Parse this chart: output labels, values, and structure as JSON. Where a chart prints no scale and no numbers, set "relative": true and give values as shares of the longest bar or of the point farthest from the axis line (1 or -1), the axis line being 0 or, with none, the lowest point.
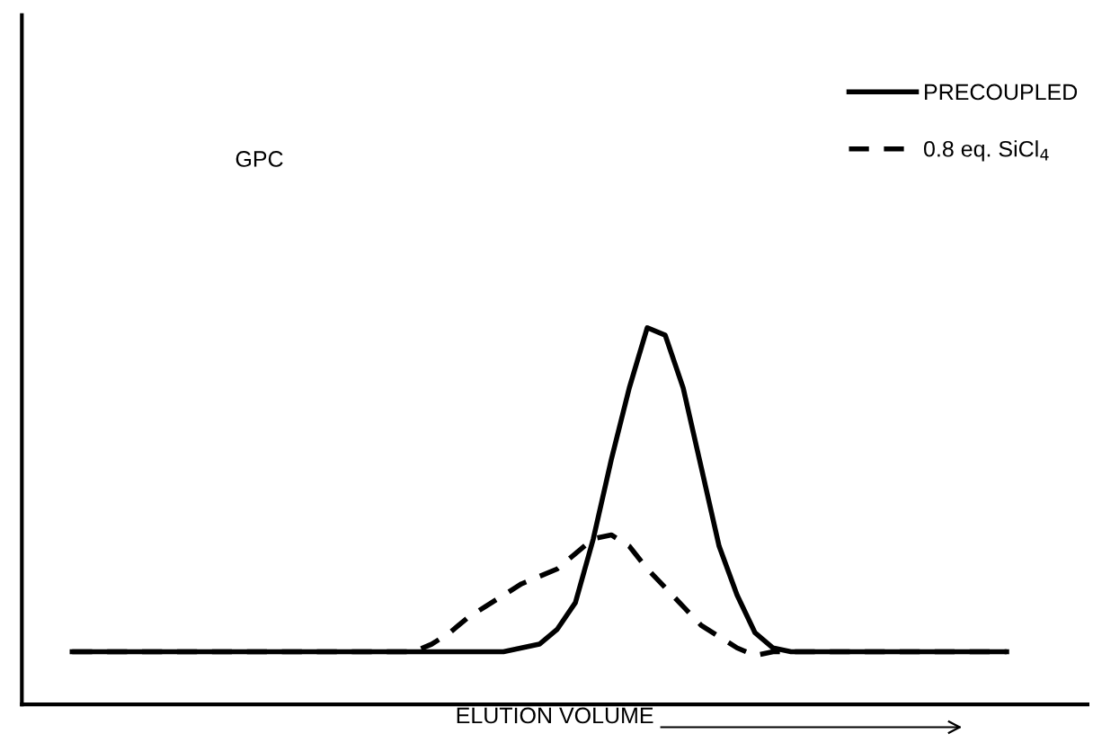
{
  "chart_data": {
    "type": "line",
    "relative": true,
    "xlabel": "ELUTION VOLUME",
    "annotations": [
      "GPC"
    ],
    "categories": [
      null,
      null,
      null,
      null,
      null,
      null,
      null,
      null,
      null,
      null,
      null,
      null,
      null,
      null,
      null,
      null,
      null,
      null,
      null,
      null,
      null,
      null,
      null,
      null,
      null,
      null,
      null,
      null,
      null,
      null,
      null,
      null,
      null,
      null,
      null,
      null,
      null,
      null,
      null,
      null,
      null,
      null,
      null,
      null,
      null,
      null,
      null,
      null,
      null,
      null,
      null,
      null,
      null
    ],
    "series": [
      {
        "name": "PRECOUPLED",
        "color": "#000000",
        "line_style": "solid",
        "values": [
          0.14,
          0.14,
          0.14,
          0.14,
          0.14,
          0.14,
          0.14,
          0.14,
          0.14,
          0.14,
          0.14,
          0.14,
          0.14,
          0.14,
          0.14,
          0.14,
          0.14,
          0.14,
          0.14,
          0.14,
          0.14,
          0.14,
          0.14,
          0.14,
          0.14,
          0.15,
          0.16,
          0.2,
          0.27,
          0.44,
          0.65,
          0.84,
          1,
          0.98,
          0.84,
          0.63,
          0.42,
          0.29,
          0.19,
          0.15,
          0.14,
          0.14,
          0.14,
          0.14,
          0.14,
          0.14,
          0.14,
          0.14,
          0.14,
          0.14,
          0.14,
          0.14,
          0.14
        ]
      },
      {
        "name": "0.8 eq. SiCl$_{4}$",
        "color": "#000000",
        "line_style": "dashed",
        "values": [
          0.14,
          0.14,
          0.14,
          0.14,
          0.14,
          0.14,
          0.14,
          0.14,
          0.14,
          0.14,
          0.14,
          0.14,
          0.14,
          0.14,
          0.14,
          0.14,
          0.14,
          0.14,
          0.14,
          0.14,
          0.16,
          0.19,
          0.23,
          0.26,
          0.29,
          0.32,
          0.34,
          0.36,
          0.4,
          0.44,
          0.45,
          0.42,
          0.36,
          0.31,
          0.26,
          0.21,
          0.18,
          0.15,
          0.13,
          0.14,
          0.14,
          0.14,
          0.14,
          0.14,
          0.14,
          0.14,
          0.14,
          0.14,
          0.14,
          0.14,
          0.14,
          0.14,
          0.14
        ]
      }
    ],
    "legend": "top right"
  }
}
